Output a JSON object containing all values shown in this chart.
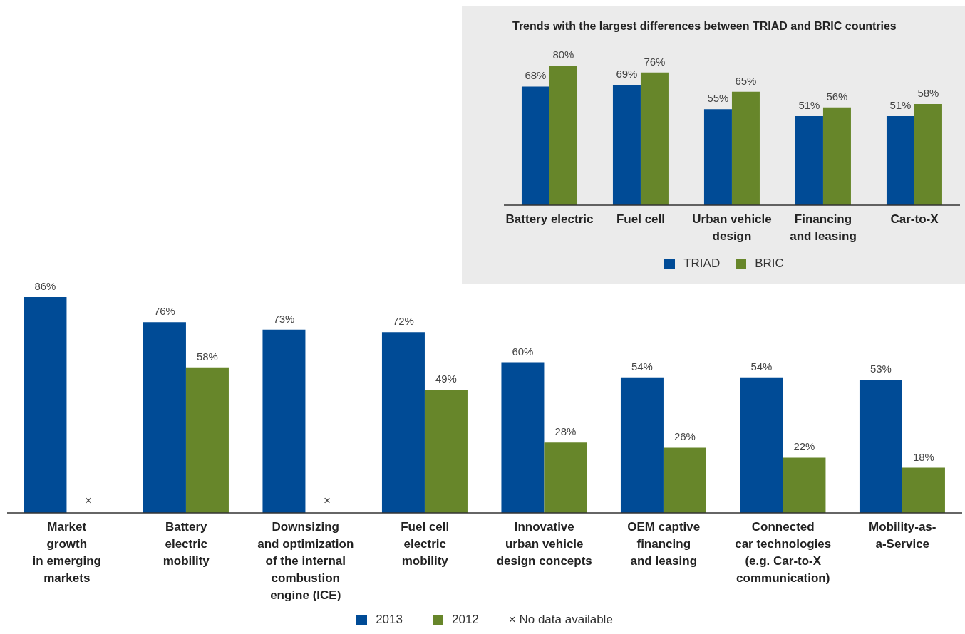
{
  "chart_data": [
    {
      "type": "bar",
      "categories": [
        "Market\ngrowth\nin emerging\nmarkets",
        "Battery\nelectric\nmobility",
        "Downsizing\nand optimization\nof the internal\ncombustion\nengine (ICE)",
        "Fuel cell\nelectric\nmobility",
        "Innovative\nurban vehicle\ndesign concepts",
        "OEM captive\nfinancing\nand leasing",
        "Connected\ncar technologies\n(e.g. Car-to-X\ncommunication)",
        "Mobility-as-\na-Service"
      ],
      "series": [
        {
          "name": "2013",
          "color": "#004b96",
          "values": [
            86,
            76,
            73,
            72,
            60,
            54,
            54,
            53
          ],
          "value_labels": [
            "86%",
            "76%",
            "73%",
            "72%",
            "60%",
            "54%",
            "54%",
            "53%"
          ]
        },
        {
          "name": "2012",
          "color": "#67862a",
          "values": [
            null,
            58,
            null,
            49,
            28,
            26,
            22,
            18
          ],
          "value_labels": [
            null,
            "58%",
            null,
            "49%",
            "28%",
            "26%",
            "22%",
            "18%"
          ]
        }
      ],
      "annotations": [
        {
          "text": "×",
          "x": "Market\ngrowth\nin emerging\nmarkets"
        },
        {
          "text": "×",
          "x": "Downsizing\nand optimization\nof the internal\ncombustion\nengine (ICE)"
        },
        "× No data available"
      ],
      "legend": "bottom"
    },
    {
      "type": "bar",
      "title": "Trends with the largest differences between TRIAD and BRIC countries",
      "categories": [
        "Battery electric",
        "Fuel cell",
        "Urban vehicle\ndesign",
        "Financing\nand leasing",
        "Car-to-X"
      ],
      "series": [
        {
          "name": "TRIAD",
          "color": "#004b96",
          "values": [
            68,
            69,
            55,
            51,
            51
          ],
          "value_labels": [
            "68%",
            "69%",
            "55%",
            "51%",
            "51%"
          ]
        },
        {
          "name": "BRIC",
          "color": "#67862a",
          "values": [
            80,
            76,
            65,
            56,
            58
          ],
          "value_labels": [
            "80%",
            "76%",
            "65%",
            "56%",
            "58%"
          ]
        }
      ],
      "legend": "bottom"
    }
  ]
}
